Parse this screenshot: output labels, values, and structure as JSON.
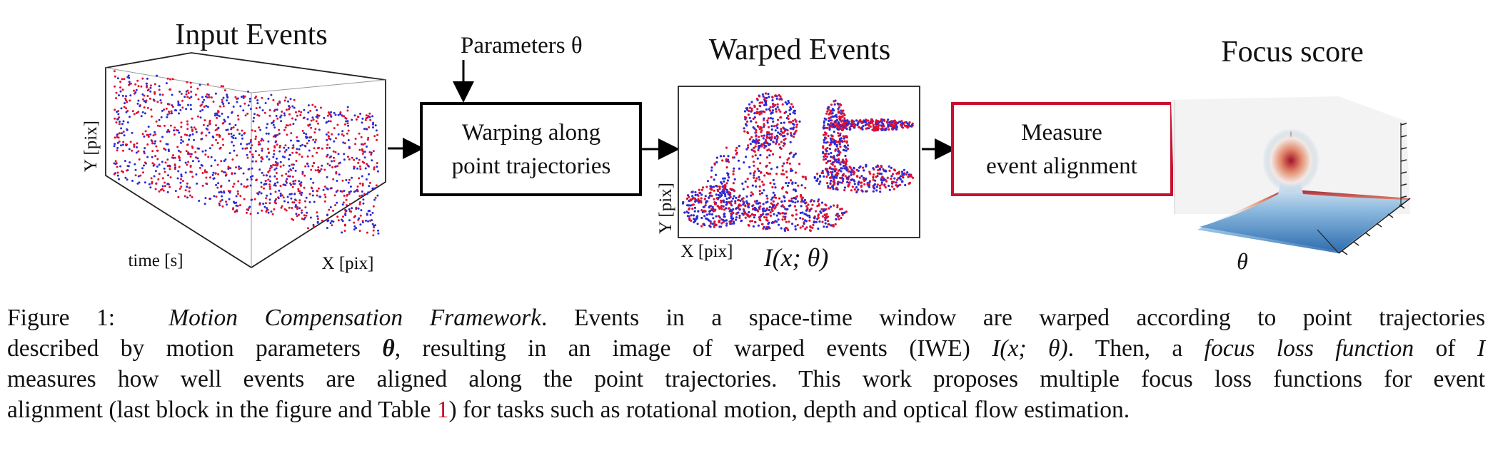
{
  "figure": {
    "input_events": {
      "title": "Input Events",
      "y_label": "Y [pix]",
      "time_label": "time [s]",
      "x_label": "X [pix]"
    },
    "parameters_label": "Parameters θ",
    "warping_block": {
      "line1": "Warping along",
      "line2": "point trajectories"
    },
    "warped_events": {
      "title": "Warped Events",
      "y_label": "Y [pix]",
      "x_label": "X [pix]",
      "formula": "I(x; θ)"
    },
    "measure_block": {
      "line1": "Measure",
      "line2": "event alignment"
    },
    "focus_score": {
      "title": "Focus score",
      "axis_label": "θ"
    },
    "colors": {
      "positive_events": "#e0102f",
      "negative_events": "#2b2bd6",
      "measure_border": "#c8102e"
    }
  },
  "caption": {
    "label": "Figure 1:",
    "title": "Motion Compensation Framework",
    "l1_rest": ". Events in a space-time window are warped according to point trajectories",
    "l2_a": "described by motion parameters ",
    "l2_theta": "θ",
    "l2_b": ", resulting in an image of warped events (IWE) ",
    "l2_formula": "I(x; θ)",
    "l2_c": ". Then, a ",
    "l2_focus": "focus loss function",
    "l2_d": " of ",
    "l2_I": "I",
    "l3": "measures how well events are aligned along the point trajectories. This work proposes multiple focus loss functions for event",
    "l4_a": "alignment (last block in the figure and Table ",
    "l4_ref": "1",
    "l4_b": ") for tasks such as rotational motion, depth and optical flow estimation."
  }
}
